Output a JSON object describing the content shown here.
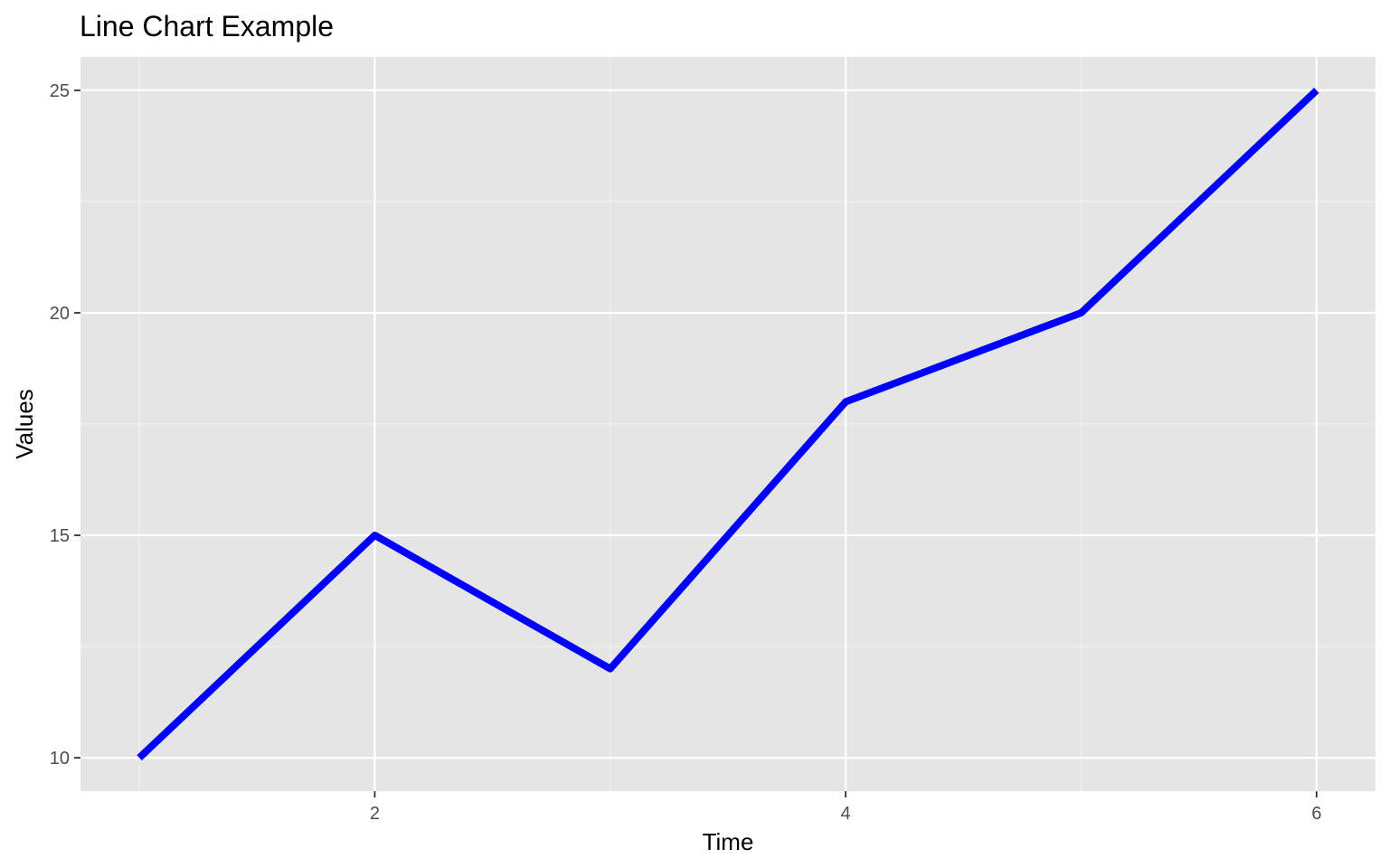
{
  "chart_data": {
    "type": "line",
    "title": "Line Chart Example",
    "xlabel": "Time",
    "ylabel": "Values",
    "x": [
      1,
      2,
      3,
      4,
      5,
      6
    ],
    "series": [
      {
        "values": [
          10,
          15,
          12,
          18,
          20,
          25
        ],
        "color": "#0000ff"
      }
    ],
    "xlim": [
      0.75,
      6.25
    ],
    "ylim": [
      9.25,
      25.75
    ],
    "x_ticks": [
      2,
      4,
      6
    ],
    "x_tick_labels": [
      "2",
      "4",
      "6"
    ],
    "x_minor_ticks": [
      1,
      3,
      5
    ],
    "y_ticks": [
      10,
      15,
      20,
      25
    ],
    "y_tick_labels": [
      "10",
      "15",
      "20",
      "25"
    ],
    "y_minor_ticks": [
      12.5,
      17.5,
      22.5
    ],
    "grid": true,
    "legend": "none",
    "colors": {
      "panel_background": "#e5e5e5",
      "grid_major": "#ffffff",
      "grid_minor": "#f2f2f2",
      "line": "#0000ff",
      "tick_text": "#4d4d4d",
      "tick_mark": "#333333"
    }
  }
}
